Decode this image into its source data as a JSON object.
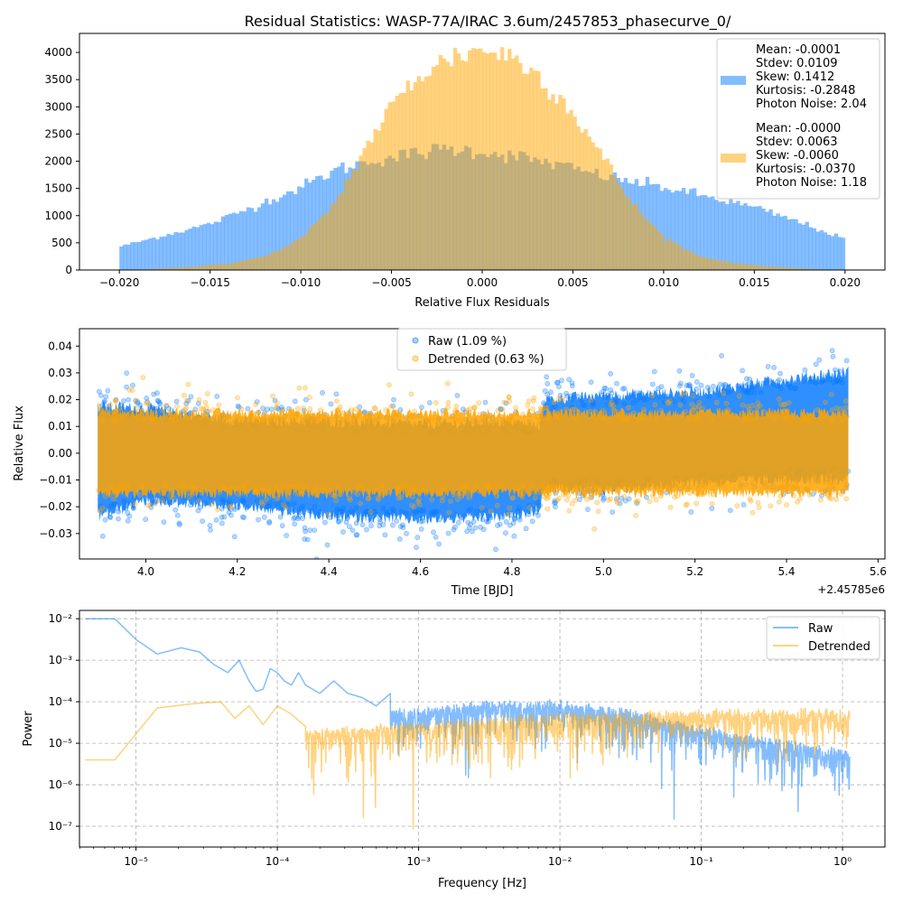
{
  "figure": {
    "title": "Residual Statistics: WASP-77A/IRAC 3.6um/2457853_phasecurve_0/"
  },
  "chart_data": [
    {
      "type": "histogram",
      "xlabel": "Relative Flux Residuals",
      "ylabel": "",
      "xlim": [
        -0.0222,
        0.0222
      ],
      "ylim": [
        0,
        4350
      ],
      "xticks": [
        "−0.020",
        "−0.015",
        "−0.010",
        "−0.005",
        "0.000",
        "0.005",
        "0.010",
        "0.015",
        "0.020"
      ],
      "xtick_values": [
        -0.02,
        -0.015,
        -0.01,
        -0.005,
        0,
        0.005,
        0.01,
        0.015,
        0.02
      ],
      "yticks": [
        "0",
        "500",
        "1000",
        "1500",
        "2000",
        "2500",
        "3000",
        "3500",
        "4000"
      ],
      "ytick_values": [
        0,
        500,
        1000,
        1500,
        2000,
        2500,
        3000,
        3500,
        4000
      ],
      "bin_range": [
        -0.02,
        0.02
      ],
      "bins": 200,
      "legend_position": "upper right",
      "series": [
        {
          "color": "#0a7bff",
          "alpha": 0.5,
          "stats": [
            "Mean: -0.0001",
            "Stdev: 0.0109",
            "Skew: 0.1412",
            "Kurtosis: -0.2848",
            "Photon Noise: 2.04"
          ],
          "shape_points": [
            [
              -0.02,
              430
            ],
            [
              -0.015,
              850
            ],
            [
              -0.0125,
              1180
            ],
            [
              -0.01,
              1520
            ],
            [
              -0.008,
              1850
            ],
            [
              -0.006,
              2020
            ],
            [
              -0.004,
              2120
            ],
            [
              -0.002,
              2230
            ],
            [
              0.0,
              2180
            ],
            [
              0.002,
              2080
            ],
            [
              0.004,
              1950
            ],
            [
              0.006,
              1780
            ],
            [
              0.008,
              1640
            ],
            [
              0.01,
              1520
            ],
            [
              0.012,
              1380
            ],
            [
              0.015,
              1150
            ],
            [
              0.0175,
              880
            ],
            [
              0.02,
              560
            ]
          ]
        },
        {
          "color": "#ffa500",
          "alpha": 0.5,
          "stats": [
            "Mean: -0.0000",
            "Stdev: 0.0063",
            "Skew: -0.0060",
            "Kurtosis: -0.0370",
            "Photon Noise: 1.18"
          ],
          "shape_points": [
            [
              -0.02,
              0
            ],
            [
              -0.018,
              20
            ],
            [
              -0.016,
              60
            ],
            [
              -0.014,
              120
            ],
            [
              -0.012,
              250
            ],
            [
              -0.011,
              400
            ],
            [
              -0.01,
              580
            ],
            [
              -0.009,
              900
            ],
            [
              -0.008,
              1300
            ],
            [
              -0.007,
              1900
            ],
            [
              -0.006,
              2500
            ],
            [
              -0.005,
              3000
            ],
            [
              -0.004,
              3400
            ],
            [
              -0.003,
              3700
            ],
            [
              -0.002,
              3850
            ],
            [
              -0.001,
              4000
            ],
            [
              0.0,
              4050
            ],
            [
              0.001,
              4000
            ],
            [
              0.002,
              3850
            ],
            [
              0.003,
              3600
            ],
            [
              0.004,
              3300
            ],
            [
              0.005,
              2900
            ],
            [
              0.006,
              2400
            ],
            [
              0.007,
              1900
            ],
            [
              0.008,
              1350
            ],
            [
              0.009,
              950
            ],
            [
              0.01,
              620
            ],
            [
              0.011,
              420
            ],
            [
              0.012,
              250
            ],
            [
              0.014,
              120
            ],
            [
              0.016,
              60
            ],
            [
              0.018,
              20
            ],
            [
              0.02,
              0
            ]
          ]
        }
      ]
    },
    {
      "type": "scatter",
      "xlabel": "Time [BJD]",
      "ylabel": "Relative Flux",
      "offset_label": "+2.45785e6",
      "xlim": [
        3.855,
        5.615
      ],
      "ylim": [
        -0.0395,
        0.0465
      ],
      "xticks": [
        "4.0",
        "4.2",
        "4.4",
        "4.6",
        "4.8",
        "5.0",
        "5.2",
        "5.4",
        "5.6"
      ],
      "xtick_values": [
        4.0,
        4.2,
        4.4,
        4.6,
        4.8,
        5.0,
        5.2,
        5.4,
        5.6
      ],
      "yticks": [
        "−0.03",
        "−0.02",
        "−0.01",
        "0.00",
        "0.01",
        "0.02",
        "0.03",
        "0.04"
      ],
      "ytick_values": [
        -0.03,
        -0.02,
        -0.01,
        0.0,
        0.01,
        0.02,
        0.03,
        0.04
      ],
      "x_range": [
        3.895,
        5.535
      ],
      "legend_position": "upper center",
      "series": [
        {
          "name": "Raw (1.09 %)",
          "color": "#0a7bff",
          "band_points": [
            [
              3.9,
              0.02,
              -0.026
            ],
            [
              4.0,
              0.019,
              -0.02
            ],
            [
              4.2,
              0.014,
              -0.022
            ],
            [
              4.4,
              0.014,
              -0.026
            ],
            [
              4.6,
              0.013,
              -0.027
            ],
            [
              4.8,
              0.014,
              -0.026
            ],
            [
              4.86,
              0.012,
              -0.023
            ],
            [
              4.87,
              0.022,
              -0.015
            ],
            [
              5.0,
              0.024,
              -0.016
            ],
            [
              5.2,
              0.025,
              -0.013
            ],
            [
              5.4,
              0.03,
              -0.012
            ],
            [
              5.535,
              0.033,
              -0.012
            ]
          ]
        },
        {
          "name": "Detrended (0.63 %)",
          "color": "#ffa500",
          "band_points": [
            [
              3.9,
              0.017,
              -0.017
            ],
            [
              4.5,
              0.017,
              -0.017
            ],
            [
              5.0,
              0.017,
              -0.017
            ],
            [
              5.535,
              0.017,
              -0.017
            ]
          ]
        }
      ]
    },
    {
      "type": "line",
      "scale": "log-log",
      "xlabel": "Frequency [Hz]",
      "ylabel": "Power",
      "xlim_log10": [
        -5.4,
        0.3
      ],
      "ylim_log10": [
        -7.5,
        -1.8
      ],
      "xticks": [
        "10⁻⁵",
        "10⁻⁴",
        "10⁻³",
        "10⁻²",
        "10⁻¹",
        "10⁰"
      ],
      "xtick_values_log10": [
        -5,
        -4,
        -3,
        -2,
        -1,
        0
      ],
      "yticks": [
        "10⁻²",
        "10⁻³",
        "10⁻⁴",
        "10⁻⁵",
        "10⁻⁶",
        "10⁻⁷"
      ],
      "ytick_values_log10": [
        -2,
        -3,
        -4,
        -5,
        -6,
        -7
      ],
      "grid": "dashed",
      "legend_position": "upper right",
      "series": [
        {
          "name": "Raw",
          "color": "#0a7bff",
          "x_log10": [
            -5.36,
            -5.15,
            -5.0,
            -4.85,
            -4.68,
            -4.55,
            -4.45,
            -4.35,
            -4.27,
            -4.2,
            -4.15,
            -4.1,
            -4.05,
            -4.0,
            -3.95,
            -3.9,
            -3.85,
            -3.8,
            -3.7,
            -3.6,
            -3.5,
            -3.4,
            -3.3,
            -3.2,
            -3.1,
            -3.0,
            -2.8,
            -2.5,
            -2.2,
            -2.0,
            -1.8,
            -1.5,
            -1.2,
            -1.0,
            -0.7,
            -0.4,
            -0.2,
            0.0,
            0.05
          ],
          "y_log10": [
            -2.0,
            -2.0,
            -2.5,
            -2.85,
            -2.7,
            -2.8,
            -3.1,
            -3.3,
            -3.0,
            -3.5,
            -3.75,
            -3.7,
            -3.2,
            -3.3,
            -3.5,
            -3.6,
            -3.3,
            -3.6,
            -3.8,
            -3.5,
            -3.8,
            -3.9,
            -4.1,
            -3.8,
            -3.95,
            -4.0,
            -3.9,
            -3.8,
            -3.75,
            -3.65,
            -3.9,
            -4.0,
            -4.1,
            -4.2,
            -4.3,
            -4.5,
            -4.6,
            -4.8,
            -5.0
          ],
          "noise_floor_log10": [
            [
              -3.2,
              -4.3
            ],
            [
              -2.5,
              -4.1
            ],
            [
              -2.0,
              -4.1
            ],
            [
              -1.5,
              -4.3
            ],
            [
              -1.0,
              -4.7
            ],
            [
              -0.5,
              -5.0
            ],
            [
              0.05,
              -5.3
            ]
          ],
          "noise_depth": 2.0
        },
        {
          "name": "Detrended",
          "color": "#ffa500",
          "x_log10": [
            -5.36,
            -5.15,
            -4.85,
            -4.6,
            -4.4,
            -4.3,
            -4.2,
            -4.1,
            -4.0,
            -3.9,
            -3.8,
            -3.7,
            -3.6,
            -3.5,
            -3.4,
            -3.3,
            -3.2,
            -3.1,
            -3.0,
            -2.5,
            -2.0,
            -1.5,
            -1.0,
            -0.5,
            0.0,
            0.05
          ],
          "y_log10": [
            -5.4,
            -5.4,
            -4.15,
            -4.05,
            -4.0,
            -4.4,
            -4.1,
            -4.55,
            -4.1,
            -4.3,
            -4.6,
            -4.5,
            -4.6,
            -4.7,
            -4.4,
            -4.8,
            -4.5,
            -4.6,
            -4.5,
            -4.35,
            -4.3,
            -4.3,
            -4.25,
            -4.2,
            -4.2,
            -4.3
          ],
          "noise_floor_log10": [
            [
              -3.8,
              -4.8
            ],
            [
              -3.0,
              -4.6
            ],
            [
              -2.0,
              -4.4
            ],
            [
              -1.0,
              -4.3
            ],
            [
              0.05,
              -4.3
            ]
          ],
          "noise_depth": 2.2
        }
      ]
    }
  ]
}
